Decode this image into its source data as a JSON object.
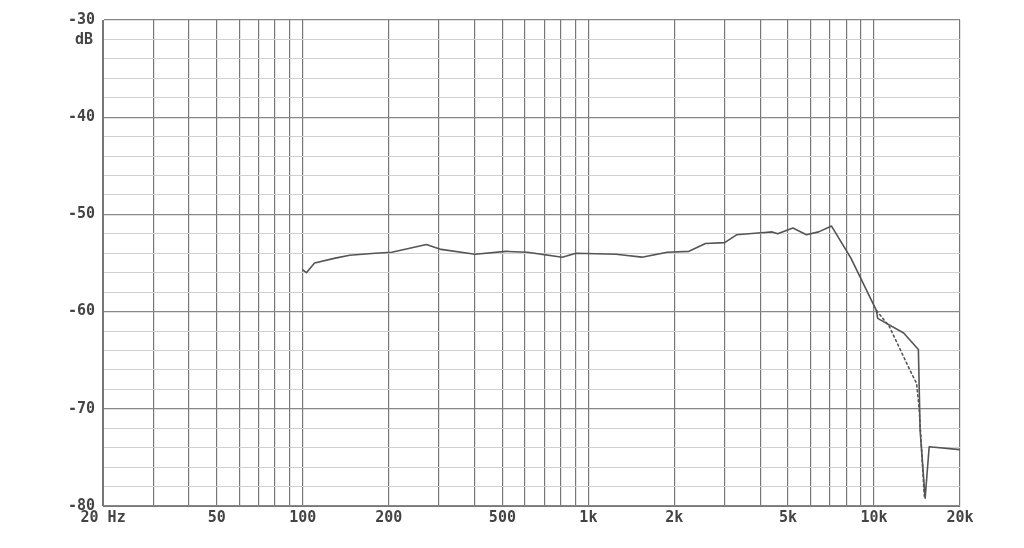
{
  "chart_data": {
    "type": "line",
    "ylabel": "dB",
    "log": "x",
    "grid": true,
    "legend": false,
    "marker": "none",
    "xlim": [
      20,
      20000
    ],
    "ylim": [
      -80,
      -30
    ],
    "xticks": [
      {
        "value": 20,
        "label": "20 Hz"
      },
      {
        "value": 30,
        "label": null
      },
      {
        "value": 40,
        "label": null
      },
      50,
      {
        "value": 60,
        "label": null
      },
      {
        "value": 70,
        "label": null
      },
      {
        "value": 80,
        "label": null
      },
      {
        "value": 90,
        "label": null
      },
      100,
      200,
      {
        "value": 300,
        "label": null
      },
      {
        "value": 400,
        "label": null
      },
      500,
      {
        "value": 600,
        "label": null
      },
      {
        "value": 700,
        "label": null
      },
      {
        "value": 800,
        "label": null
      },
      {
        "value": 900,
        "label": null
      },
      {
        "value": 1000,
        "label": "1k"
      },
      {
        "value": 2000,
        "label": "2k"
      },
      {
        "value": 3000,
        "label": null
      },
      {
        "value": 4000,
        "label": null
      },
      {
        "value": 5000,
        "label": "5k"
      },
      {
        "value": 6000,
        "label": null
      },
      {
        "value": 7000,
        "label": null
      },
      {
        "value": 8000,
        "label": null
      },
      {
        "value": 9000,
        "label": null
      },
      {
        "value": 10000,
        "label": "10k"
      },
      {
        "value": 20000,
        "label": "20k"
      }
    ],
    "yticks": [
      -80,
      {
        "value": -78,
        "label": null
      },
      {
        "value": -76,
        "label": null
      },
      {
        "value": -74,
        "label": null
      },
      {
        "value": -72,
        "label": null
      },
      -70,
      {
        "value": -68,
        "label": null
      },
      {
        "value": -66,
        "label": null
      },
      {
        "value": -64,
        "label": null
      },
      {
        "value": -62,
        "label": null
      },
      -60,
      {
        "value": -58,
        "label": null
      },
      {
        "value": -56,
        "label": null
      },
      {
        "value": -54,
        "label": null
      },
      {
        "value": -52,
        "label": null
      },
      -50,
      {
        "value": -48,
        "label": null
      },
      {
        "value": -46,
        "label": null
      },
      {
        "value": -44,
        "label": null
      },
      {
        "value": -42,
        "label": null
      },
      -40,
      {
        "value": -38,
        "label": null
      },
      {
        "value": -36,
        "label": null
      },
      {
        "value": -34,
        "label": null
      },
      {
        "value": -32,
        "label": null
      },
      -30
    ],
    "series": [
      {
        "color": "#555555",
        "line_style": "solid",
        "x": [
          100,
          103,
          110,
          130,
          146,
          179,
          205,
          271,
          305,
          401,
          514,
          611,
          810,
          906,
          1250,
          1540,
          1890,
          2250,
          2570,
          3000,
          3300,
          4400,
          4600,
          5200,
          5800,
          6400,
          7100,
          8300,
          10200,
          10300,
          12700,
          14300,
          14500,
          15100,
          15600,
          20000
        ],
        "values": [
          -55.7,
          -56.0,
          -55.0,
          -54.5,
          -54.2,
          -54.0,
          -53.9,
          -53.1,
          -53.6,
          -54.1,
          -53.8,
          -53.9,
          -54.4,
          -54.0,
          -54.1,
          -54.4,
          -53.9,
          -53.8,
          -53.0,
          -52.9,
          -52.1,
          -51.8,
          -52.0,
          -51.4,
          -52.1,
          -51.8,
          -51.2,
          -54.5,
          -59.9,
          -60.7,
          -62.2,
          -63.9,
          -72.2,
          -79.2,
          -73.9,
          -74.2
        ]
      },
      {
        "color": "#555555",
        "line_style": "dotted",
        "x": [
          10200,
          11300,
          13300,
          14100,
          14400,
          15000
        ],
        "values": [
          -59.9,
          -61.5,
          -65.9,
          -67.4,
          -70.1,
          -79
        ]
      }
    ]
  }
}
